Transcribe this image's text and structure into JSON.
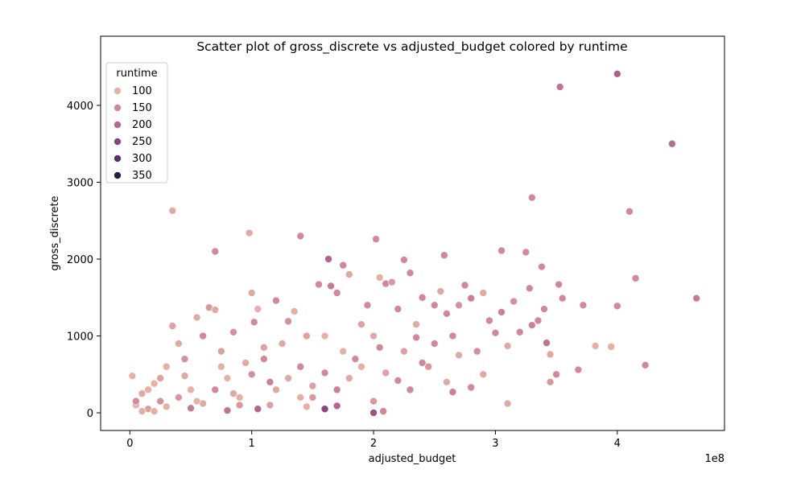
{
  "chart_data": {
    "type": "scatter",
    "title": "Scatter plot of gross_discrete vs adjusted_budget colored by runtime",
    "x_label": "adjusted_budget",
    "y_label": "gross_discrete",
    "x_offset_label": "1e8",
    "xlim": [
      -0.24,
      4.88
    ],
    "ylim": [
      -230,
      4900
    ],
    "xticks": [
      0,
      1,
      2,
      3,
      4
    ],
    "yticks": [
      0,
      1000,
      2000,
      3000,
      4000
    ],
    "legend": {
      "title": "runtime",
      "position": "upper left",
      "levels": [
        100,
        150,
        200,
        250,
        300,
        350
      ],
      "colors": [
        "#e5b1a5",
        "#d0889a",
        "#b2678f",
        "#8b4580",
        "#5c2d6c",
        "#2d1d40"
      ]
    },
    "x": [
      3.53,
      4.0,
      4.45,
      3.3,
      4.1,
      0.35,
      0.98,
      1.4,
      2.02,
      0.7,
      1.63,
      3.05,
      3.25,
      4.15,
      4.65,
      4.0,
      3.72,
      3.55,
      3.52,
      3.38,
      3.28,
      3.82,
      3.95,
      4.23,
      3.68,
      3.1,
      2.58,
      2.25,
      2.0,
      2.08,
      0.02,
      0.05,
      0.1,
      0.15,
      0.2,
      0.25,
      0.3,
      0.35,
      0.4,
      0.45,
      0.5,
      0.55,
      0.6,
      0.65,
      0.7,
      0.75,
      0.8,
      0.85,
      0.9,
      0.95,
      1.0,
      1.02,
      1.05,
      1.1,
      1.15,
      1.2,
      1.25,
      1.3,
      1.35,
      1.4,
      1.45,
      1.5,
      1.55,
      1.6,
      1.65,
      1.7,
      1.75,
      1.8,
      1.85,
      1.9,
      1.95,
      2.0,
      2.05,
      2.1,
      2.15,
      2.2,
      2.25,
      2.3,
      2.35,
      2.4,
      2.45,
      2.5,
      2.55,
      2.6,
      2.65,
      2.7,
      2.75,
      2.8,
      2.85,
      2.9,
      2.95,
      3.0,
      3.05,
      3.1,
      3.15,
      3.2,
      3.3,
      3.35,
      3.4,
      3.42,
      3.45,
      3.5,
      3.45,
      1.05,
      1.6,
      1.7,
      0.5,
      0.8,
      0.1,
      0.3,
      0.6,
      0.9,
      1.2,
      1.5,
      1.8,
      2.1,
      2.4,
      2.7,
      0.2,
      0.4,
      0.7,
      1.0,
      1.3,
      1.6,
      1.9,
      2.2,
      2.5,
      2.8,
      0.15,
      0.45,
      0.75,
      1.1,
      1.4,
      1.7,
      2.0,
      2.3,
      2.6,
      2.9,
      0.05,
      0.25,
      0.55,
      0.85,
      1.15,
      1.45,
      1.75,
      2.05,
      2.35,
      2.65
    ],
    "y": [
      4240,
      4410,
      3500,
      2800,
      2620,
      2630,
      2340,
      2300,
      2260,
      2100,
      2000,
      2110,
      2090,
      1750,
      1490,
      1390,
      1400,
      1490,
      1670,
      1900,
      1620,
      870,
      860,
      620,
      560,
      120,
      2050,
      1990,
      0,
      20,
      480,
      100,
      250,
      50,
      380,
      150,
      600,
      1130,
      900,
      700,
      300,
      1240,
      1000,
      1370,
      1340,
      800,
      450,
      1050,
      100,
      650,
      1560,
      1180,
      1350,
      850,
      400,
      1460,
      900,
      1190,
      1320,
      600,
      1000,
      200,
      1670,
      1000,
      1650,
      1560,
      1920,
      1800,
      700,
      1150,
      1400,
      1000,
      1760,
      1680,
      1700,
      1350,
      800,
      1820,
      1150,
      1500,
      600,
      1400,
      1580,
      1290,
      270,
      1400,
      1660,
      1490,
      800,
      1560,
      1200,
      1040,
      1310,
      870,
      1450,
      1050,
      1140,
      1200,
      1350,
      910,
      760,
      500,
      400,
      50,
      50,
      90,
      60,
      30,
      20,
      80,
      120,
      200,
      300,
      350,
      450,
      520,
      650,
      750,
      20,
      200,
      300,
      500,
      450,
      520,
      600,
      420,
      900,
      330,
      300,
      480,
      600,
      700,
      200,
      300,
      150,
      300,
      400,
      500,
      150,
      450,
      150,
      250,
      100,
      80,
      800,
      850,
      980,
      1000
    ],
    "hue": [
      180,
      210,
      190,
      150,
      150,
      110,
      110,
      150,
      150,
      150,
      200,
      150,
      150,
      150,
      170,
      150,
      150,
      150,
      150,
      150,
      150,
      100,
      100,
      150,
      150,
      110,
      150,
      150,
      230,
      150,
      100,
      100,
      110,
      120,
      100,
      140,
      100,
      120,
      110,
      140,
      100,
      110,
      150,
      130,
      110,
      120,
      100,
      140,
      130,
      110,
      110,
      150,
      100,
      120,
      160,
      150,
      110,
      140,
      100,
      150,
      120,
      130,
      150,
      100,
      170,
      150,
      150,
      110,
      150,
      120,
      150,
      110,
      100,
      150,
      130,
      150,
      120,
      150,
      110,
      150,
      130,
      150,
      110,
      150,
      160,
      140,
      150,
      160,
      140,
      110,
      150,
      150,
      160,
      110,
      140,
      150,
      160,
      150,
      150,
      180,
      110,
      150,
      130,
      200,
      250,
      200,
      170,
      180,
      100,
      100,
      110,
      100,
      110,
      120,
      110,
      120,
      150,
      110,
      100,
      130,
      150,
      140,
      110,
      150,
      100,
      150,
      150,
      150,
      100,
      110,
      100,
      150,
      100,
      160,
      130,
      150,
      110,
      110,
      150,
      120,
      100,
      110,
      120,
      100,
      100,
      150,
      150,
      150
    ]
  }
}
